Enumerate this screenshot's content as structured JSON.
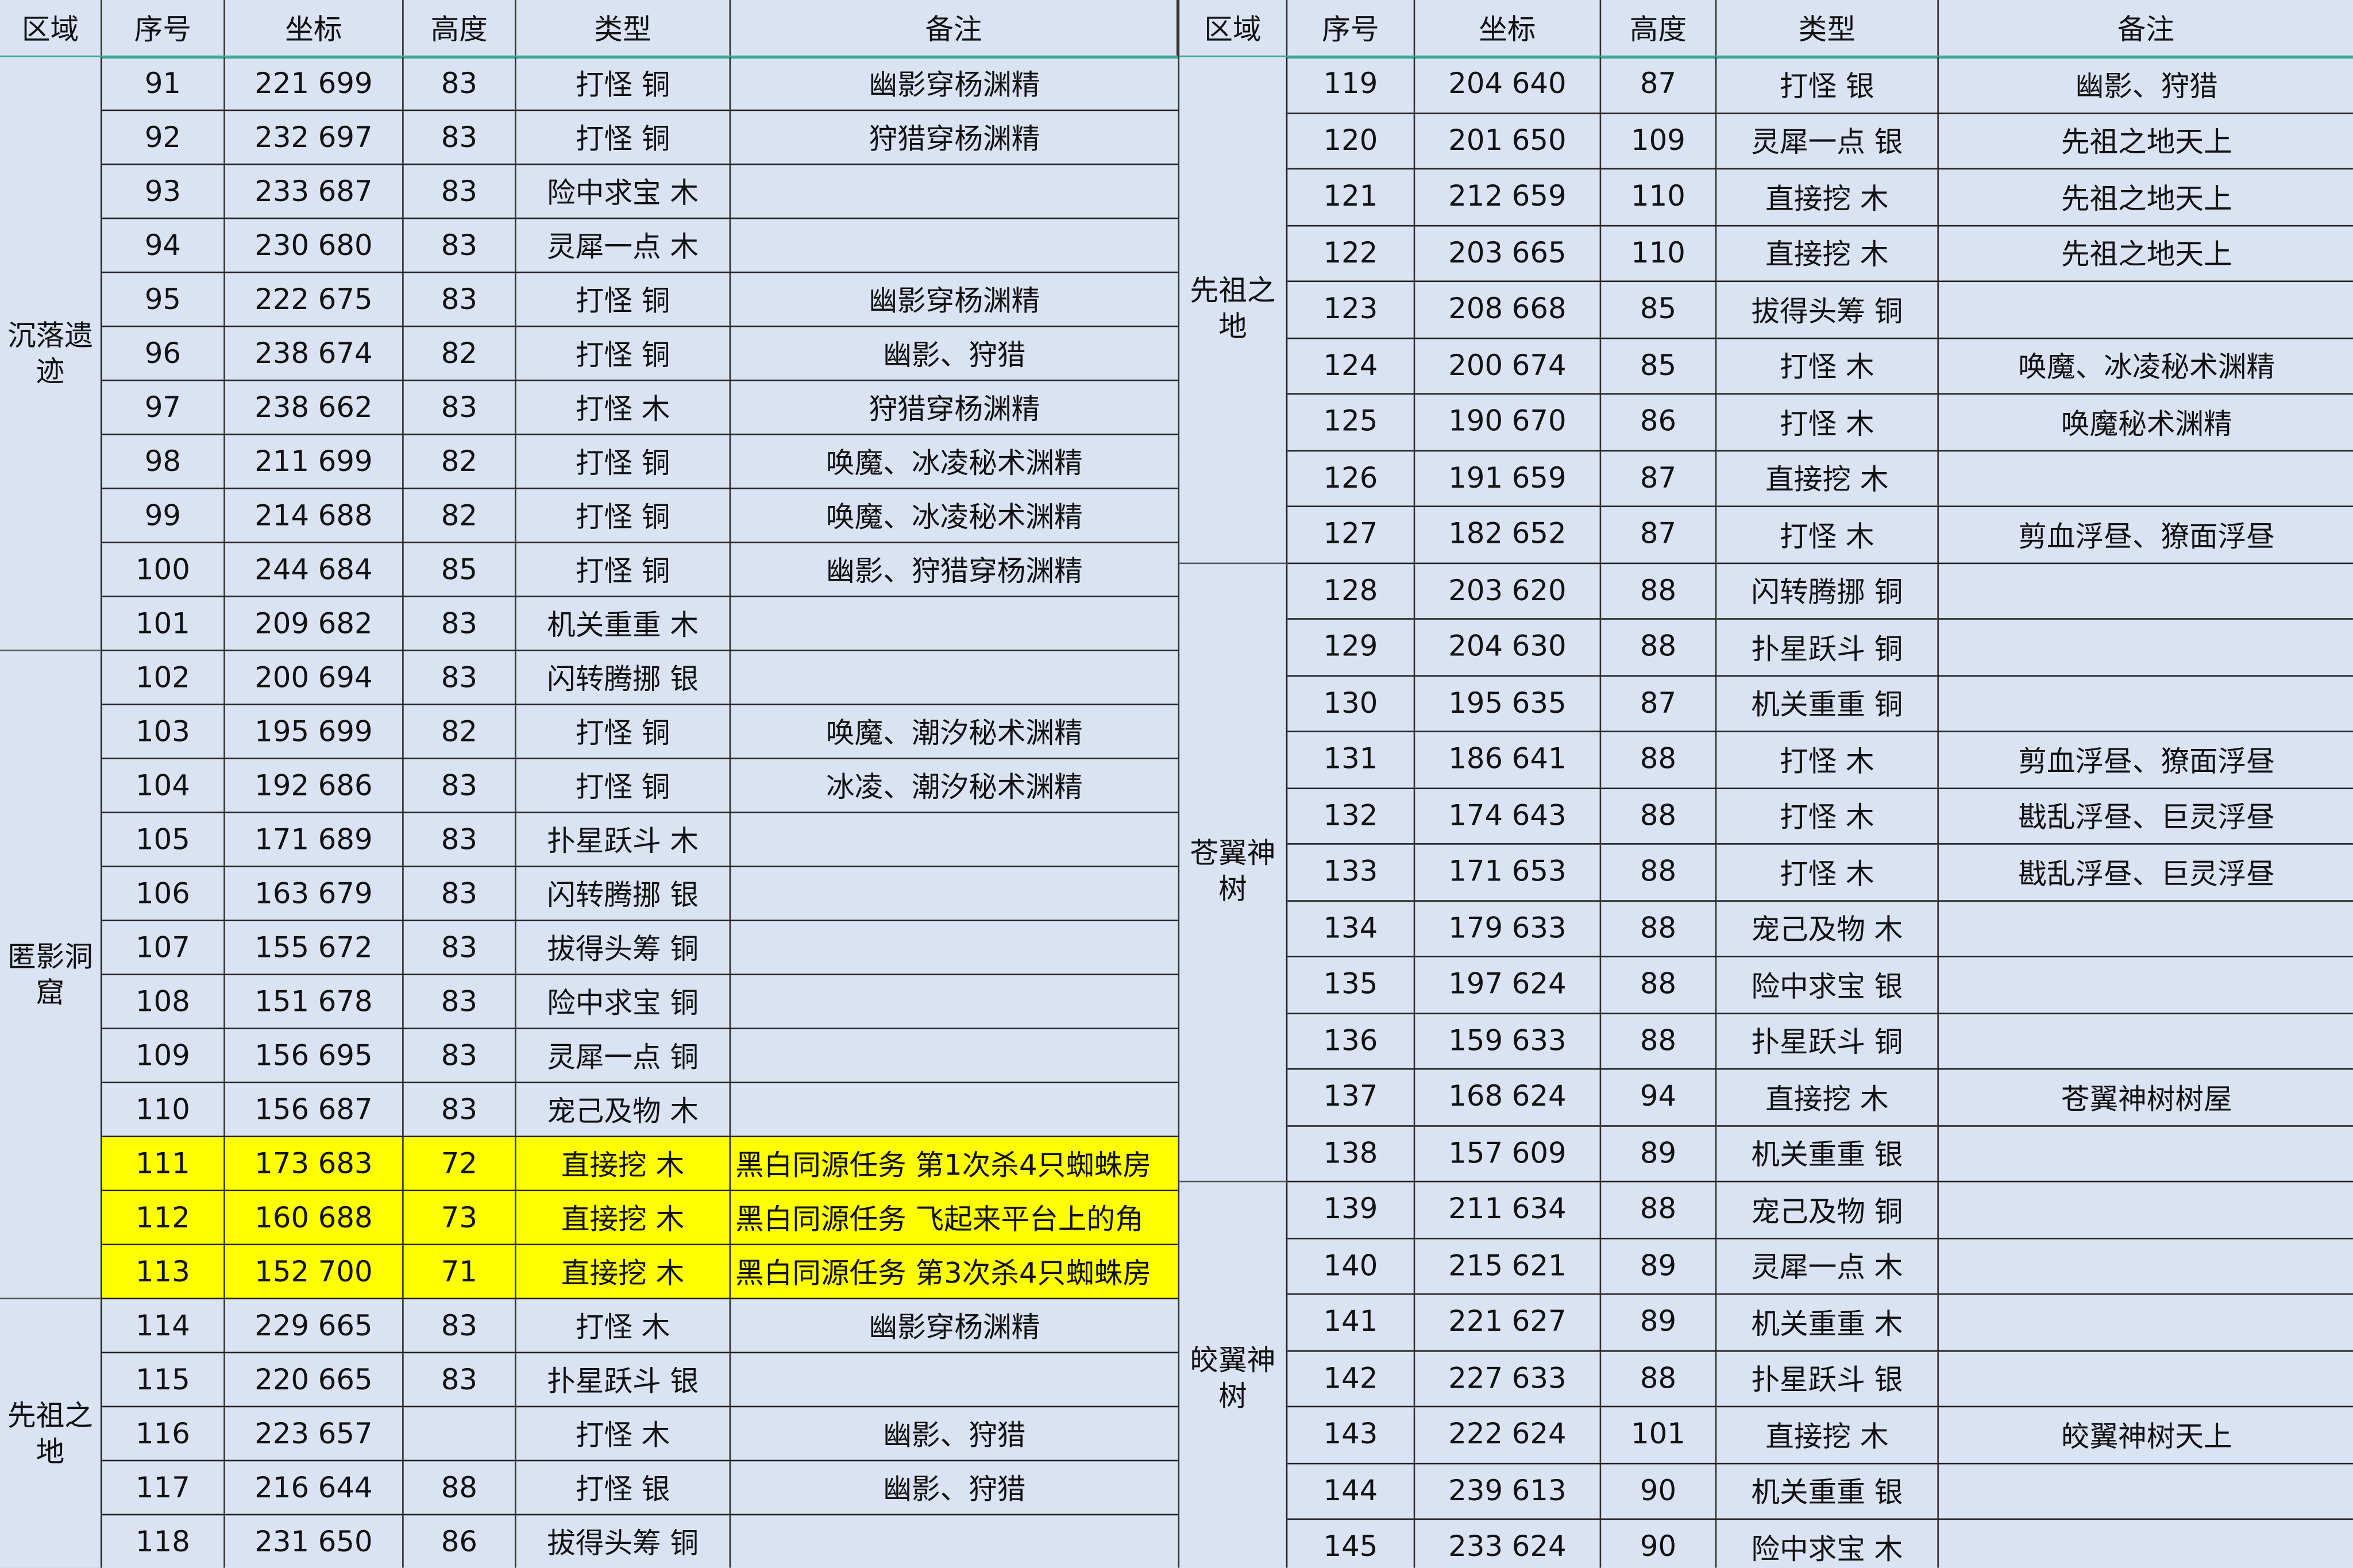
{
  "headers": [
    "区域",
    "序号",
    "坐标",
    "高度",
    "类型",
    "备注"
  ],
  "colors": {
    "background": "#dae3f3",
    "highlight": "#ffff00",
    "header_rule": "#3fa89a"
  },
  "left": {
    "regions": [
      {
        "name": "沉落遗迹",
        "count": 11
      },
      {
        "name": "匿影洞窟",
        "count": 12
      },
      {
        "name": "先祖之地",
        "count": 5
      }
    ],
    "rows": [
      {
        "no": "91",
        "coord": "221 699",
        "height": "83",
        "type": "打怪 铜",
        "note": "幽影穿杨渊精"
      },
      {
        "no": "92",
        "coord": "232 697",
        "height": "83",
        "type": "打怪 铜",
        "note": "狩猎穿杨渊精"
      },
      {
        "no": "93",
        "coord": "233 687",
        "height": "83",
        "type": "险中求宝 木",
        "note": ""
      },
      {
        "no": "94",
        "coord": "230 680",
        "height": "83",
        "type": "灵犀一点 木",
        "note": ""
      },
      {
        "no": "95",
        "coord": "222 675",
        "height": "83",
        "type": "打怪 铜",
        "note": "幽影穿杨渊精"
      },
      {
        "no": "96",
        "coord": "238 674",
        "height": "82",
        "type": "打怪 铜",
        "note": "幽影、狩猎"
      },
      {
        "no": "97",
        "coord": "238 662",
        "height": "83",
        "type": "打怪 木",
        "note": "狩猎穿杨渊精"
      },
      {
        "no": "98",
        "coord": "211 699",
        "height": "82",
        "type": "打怪 铜",
        "note": "唤魔、冰凌秘术渊精"
      },
      {
        "no": "99",
        "coord": "214 688",
        "height": "82",
        "type": "打怪 铜",
        "note": "唤魔、冰凌秘术渊精"
      },
      {
        "no": "100",
        "coord": "244 684",
        "height": "85",
        "type": "打怪 铜",
        "note": "幽影、狩猎穿杨渊精"
      },
      {
        "no": "101",
        "coord": "209 682",
        "height": "83",
        "type": "机关重重 木",
        "note": ""
      },
      {
        "no": "102",
        "coord": "200 694",
        "height": "83",
        "type": "闪转腾挪 银",
        "note": ""
      },
      {
        "no": "103",
        "coord": "195 699",
        "height": "82",
        "type": "打怪 铜",
        "note": "唤魔、潮汐秘术渊精"
      },
      {
        "no": "104",
        "coord": "192 686",
        "height": "83",
        "type": "打怪 铜",
        "note": "冰凌、潮汐秘术渊精"
      },
      {
        "no": "105",
        "coord": "171 689",
        "height": "83",
        "type": "扑星跃斗 木",
        "note": ""
      },
      {
        "no": "106",
        "coord": "163 679",
        "height": "83",
        "type": "闪转腾挪 银",
        "note": ""
      },
      {
        "no": "107",
        "coord": "155 672",
        "height": "83",
        "type": "拔得头筹 铜",
        "note": ""
      },
      {
        "no": "108",
        "coord": "151 678",
        "height": "83",
        "type": "险中求宝 铜",
        "note": ""
      },
      {
        "no": "109",
        "coord": "156 695",
        "height": "83",
        "type": "灵犀一点 铜",
        "note": ""
      },
      {
        "no": "110",
        "coord": "156 687",
        "height": "83",
        "type": "宠己及物 木",
        "note": ""
      },
      {
        "no": "111",
        "coord": "173 683",
        "height": "72",
        "type": "直接挖 木",
        "note": "黑白同源任务  第1次杀4只蜘蛛房",
        "highlight": true
      },
      {
        "no": "112",
        "coord": "160 688",
        "height": "73",
        "type": "直接挖 木",
        "note": "黑白同源任务  飞起来平台上的角",
        "highlight": true
      },
      {
        "no": "113",
        "coord": "152 700",
        "height": "71",
        "type": "直接挖 木",
        "note": "黑白同源任务  第3次杀4只蜘蛛房",
        "highlight": true
      },
      {
        "no": "114",
        "coord": "229 665",
        "height": "83",
        "type": "打怪 木",
        "note": "幽影穿杨渊精"
      },
      {
        "no": "115",
        "coord": "220 665",
        "height": "83",
        "type": "扑星跃斗 银",
        "note": ""
      },
      {
        "no": "116",
        "coord": "223 657",
        "height": "",
        "type": "打怪 木",
        "note": "幽影、狩猎"
      },
      {
        "no": "117",
        "coord": "216 644",
        "height": "88",
        "type": "打怪 银",
        "note": "幽影、狩猎"
      },
      {
        "no": "118",
        "coord": "231 650",
        "height": "86",
        "type": "拔得头筹 铜",
        "note": ""
      }
    ]
  },
  "right": {
    "regions": [
      {
        "name": "先祖之地",
        "count": 9
      },
      {
        "name": "苍翼神树",
        "count": 11
      },
      {
        "name": "皎翼神树",
        "count": 7
      }
    ],
    "rows": [
      {
        "no": "119",
        "coord": "204 640",
        "height": "87",
        "type": "打怪 银",
        "note": "幽影、狩猎"
      },
      {
        "no": "120",
        "coord": "201 650",
        "height": "109",
        "type": "灵犀一点 银",
        "note": "先祖之地天上"
      },
      {
        "no": "121",
        "coord": "212 659",
        "height": "110",
        "type": "直接挖 木",
        "note": "先祖之地天上"
      },
      {
        "no": "122",
        "coord": "203 665",
        "height": "110",
        "type": "直接挖 木",
        "note": "先祖之地天上"
      },
      {
        "no": "123",
        "coord": "208 668",
        "height": "85",
        "type": "拔得头筹 铜",
        "note": ""
      },
      {
        "no": "124",
        "coord": "200 674",
        "height": "85",
        "type": "打怪 木",
        "note": "唤魔、冰凌秘术渊精"
      },
      {
        "no": "125",
        "coord": "190 670",
        "height": "86",
        "type": "打怪 木",
        "note": "唤魔秘术渊精"
      },
      {
        "no": "126",
        "coord": "191 659",
        "height": "87",
        "type": "直接挖 木",
        "note": ""
      },
      {
        "no": "127",
        "coord": "182 652",
        "height": "87",
        "type": "打怪 木",
        "note": "剪血浮昼、獠面浮昼"
      },
      {
        "no": "128",
        "coord": "203 620",
        "height": "88",
        "type": "闪转腾挪 铜",
        "note": ""
      },
      {
        "no": "129",
        "coord": "204 630",
        "height": "88",
        "type": "扑星跃斗 铜",
        "note": ""
      },
      {
        "no": "130",
        "coord": "195 635",
        "height": "87",
        "type": "机关重重 铜",
        "note": ""
      },
      {
        "no": "131",
        "coord": "186 641",
        "height": "88",
        "type": "打怪 木",
        "note": "剪血浮昼、獠面浮昼"
      },
      {
        "no": "132",
        "coord": "174 643",
        "height": "88",
        "type": "打怪 木",
        "note": "戡乱浮昼、巨灵浮昼"
      },
      {
        "no": "133",
        "coord": "171 653",
        "height": "88",
        "type": "打怪 木",
        "note": "戡乱浮昼、巨灵浮昼"
      },
      {
        "no": "134",
        "coord": "179 633",
        "height": "88",
        "type": "宠己及物 木",
        "note": ""
      },
      {
        "no": "135",
        "coord": "197 624",
        "height": "88",
        "type": "险中求宝 银",
        "note": ""
      },
      {
        "no": "136",
        "coord": "159 633",
        "height": "88",
        "type": "扑星跃斗 铜",
        "note": ""
      },
      {
        "no": "137",
        "coord": "168 624",
        "height": "94",
        "type": "直接挖 木",
        "note": "苍翼神树树屋"
      },
      {
        "no": "138",
        "coord": "157 609",
        "height": "89",
        "type": "机关重重 银",
        "note": ""
      },
      {
        "no": "139",
        "coord": "211 634",
        "height": "88",
        "type": "宠己及物 铜",
        "note": ""
      },
      {
        "no": "140",
        "coord": "215 621",
        "height": "89",
        "type": "灵犀一点 木",
        "note": ""
      },
      {
        "no": "141",
        "coord": "221 627",
        "height": "89",
        "type": "机关重重 木",
        "note": ""
      },
      {
        "no": "142",
        "coord": "227 633",
        "height": "88",
        "type": "扑星跃斗 银",
        "note": ""
      },
      {
        "no": "143",
        "coord": "222 624",
        "height": "101",
        "type": "直接挖 木",
        "note": "皎翼神树天上"
      },
      {
        "no": "144",
        "coord": "239 613",
        "height": "90",
        "type": "机关重重 银",
        "note": ""
      },
      {
        "no": "145",
        "coord": "233 624",
        "height": "90",
        "type": "险中求宝 木",
        "note": ""
      }
    ]
  }
}
